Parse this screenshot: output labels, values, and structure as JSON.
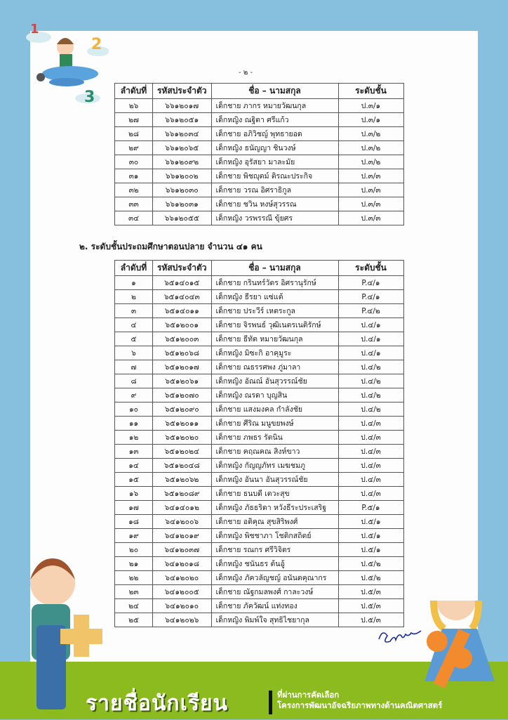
{
  "page_number": "- ๒ -",
  "table_headers": [
    "ลำดับที่",
    "รหัสประจำตัว",
    "ชื่อ – นามสกุล",
    "ระดับชั้น"
  ],
  "table1": [
    [
      "๒๖",
      "๖๖๑๒๐๑๗",
      "เด็กชาย ภากร   หมายวัฒนกุล",
      "ป.๓/๑"
    ],
    [
      "๒๗",
      "๖๖๑๒๐๕๑",
      "เด็กหญิง ณฐิตา   ศรีแก้ว",
      "ป.๓/๑"
    ],
    [
      "๒๘",
      "๖๖๑๒๐๓๔",
      "เด็กชาย อภิวิชญ์   พุทธายอด",
      "ป.๓/๒"
    ],
    [
      "๒๙",
      "๖๖๑๒๐๖๕",
      "เด็กหญิง ธนัญญา   ชินวงษ์",
      "ป.๓/๒"
    ],
    [
      "๓๐",
      "๖๖๑๒๐๙๒",
      "เด็กหญิง อุรัสยา   มาละมัย",
      "ป.๓/๒"
    ],
    [
      "๓๑",
      "๖๖๑๒๐๐๒",
      "เด็กชาย พิชญุตม์   ติรณะประกิจ",
      "ป.๓/๓"
    ],
    [
      "๓๒",
      "๖๖๑๒๐๓๐",
      "เด็กชาย วรณ   อิศราธิกูล",
      "ป.๓/๓"
    ],
    [
      "๓๓",
      "๖๖๑๒๐๓๑",
      "เด็กชาย ชวิน   หงษ์สุวรรณ",
      "ป.๓/๓"
    ],
    [
      "๓๔",
      "๖๖๑๒๐๕๕",
      "เด็กหญิง วรพรรณี   ขุ้ยศร",
      "ป.๓/๓"
    ]
  ],
  "section2_heading": "๒. ระดับชั้นประถมศึกษาตอนปลาย จำนวน ๔๑  คน",
  "table2": [
    [
      "๑",
      "๖๕๑๔๐๑๕",
      "เด็กชาย กรินทร์วัตร อิศรานุรักษ์",
      "P.๔/๑"
    ],
    [
      "๒",
      "๖๕๑๔๐๔๓",
      "เด็กหญิง ธีรยา แซ่แต้",
      "P.๔/๑"
    ],
    [
      "๓",
      "๖๕๑๔๐๑๑",
      "เด็กชาย ประวีร์ เหตระกูล",
      "P.๔/๒"
    ],
    [
      "๔",
      "๖๕๑๒๐๐๑",
      "เด็กชาย จิรพนธ์ วุฒิเนตรเนติรักษ์",
      "ป.๔/๑"
    ],
    [
      "๕",
      "๖๕๑๒๐๐๓",
      "เด็กชาย ธีทัต หมายวัฒนกุล",
      "ป.๔/๑"
    ],
    [
      "๖",
      "๖๕๑๒๐๖๘",
      "เด็กหญิง มิซะกิ อาคุมูระ",
      "ป.๔/๑"
    ],
    [
      "๗",
      "๖๕๑๒๐๑๗",
      "เด็กชาย ณธรรศพง ภู่มาลา",
      "ป.๔/๒"
    ],
    [
      "๘",
      "๖๕๑๒๐๖๑",
      "เด็กหญิง อัณณ์ อันสุวรรณ์ชัย",
      "ป.๔/๒"
    ],
    [
      "๙",
      "๖๕๑๒๐๗๐",
      "เด็กหญิง ณรดา บุญสิน",
      "ป.๔/๒"
    ],
    [
      "๑๐",
      "๖๕๑๒๐๙๐",
      "เด็กชาย แสงมงคล กำลังชัย",
      "ป.๔/๒"
    ],
    [
      "๑๑",
      "๖๕๑๒๐๑๑",
      "เด็กชาย ศีริณ มนูขยพงษ์",
      "ป.๔/๓"
    ],
    [
      "๑๒",
      "๖๕๑๒๐๒๐",
      "เด็กชาย ภพธร รัตนิน",
      "ป.๔/๓"
    ],
    [
      "๑๓",
      "๖๕๑๒๐๒๔",
      "เด็กชาย ฅฤณฅณ สิงห์ขาว",
      "ป.๔/๓"
    ],
    [
      "๑๔",
      "๖๕๑๒๐๔๘",
      "เด็กหญิง กัญญภัทร เมฆชมภู",
      "ป.๔/๓"
    ],
    [
      "๑๕",
      "๖๕๑๒๐๖๒",
      "เด็กหญิง อันนา อันสุวรรณ์ชัย",
      "ป.๔/๓"
    ],
    [
      "๑๖",
      "๖๕๑๒๐๘๙",
      "เด็กชาย ธนบดี เตวะสุข",
      "ป.๔/๓"
    ],
    [
      "๑๗",
      "๖๔๑๔๐๑๒",
      "เด็กหญิง ภัธธริดา   หวังธีระประเสริฐ",
      "P.๕/๑"
    ],
    [
      "๑๘",
      "๖๔๑๒๐๐๖",
      "เด็กชาย อติคุณ   สุขสิริพงศ์",
      "ป.๕/๑"
    ],
    [
      "๑๙",
      "๖๔๑๒๐๑๙",
      "เด็กหญิง พิชชาภา   โชติกสถิตย์",
      "ป.๕/๑"
    ],
    [
      "๒๐",
      "๖๔๑๒๐๓๗",
      "เด็กชาย รณกร   ศรีวิจิตร",
      "ป.๕/๑"
    ],
    [
      "๒๑",
      "๖๔๑๒๐๑๘",
      "เด็กหญิง ชนันธร   ต้นอู้",
      "ป.๕/๒"
    ],
    [
      "๒๒",
      "๖๔๑๒๐๒๐",
      "เด็กหญิง ภัควลัญชญ์   อนันตคุณากร",
      "ป.๕/๒"
    ],
    [
      "๒๓",
      "๖๔๑๒๐๐๕",
      "เด็กชาย ณัฐกมลพงศ์   กาละวงษ์",
      "ป.๕/๓"
    ],
    [
      "๒๔",
      "๖๔๑๒๐๑๐",
      "เด็กชาย ภัควัฒน์   แท่งทอง",
      "ป.๕/๓"
    ],
    [
      "๒๕",
      "๖๔๑๒๐๒๖",
      "เด็กหญิง พิมพ์ใจ   สุทธิไชยากุล",
      "ป.๕/๓"
    ]
  ],
  "banner": {
    "title": "รายชื่อนักเรียน",
    "subtitle_line1": "ที่ผ่านการคัดเลือก",
    "subtitle_line2": "โครงการพัฒนาอัจฉริยภาพทางด้านคณิตศาสตร์"
  },
  "colors": {
    "sky": "#86c0de",
    "grass": "#8cbb1f",
    "paper": "#fdfdfd",
    "signature": "#1a2aa0"
  }
}
